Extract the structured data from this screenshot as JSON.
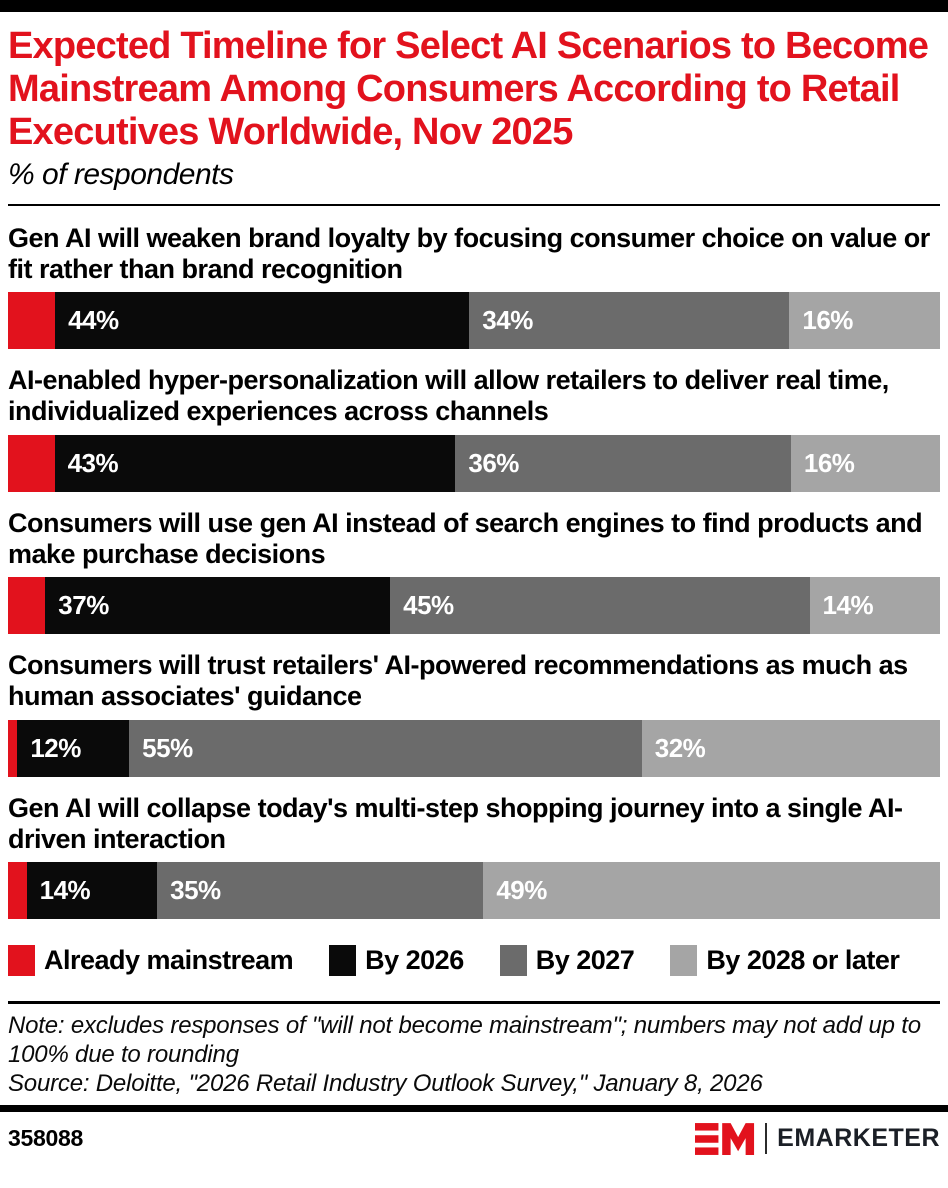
{
  "header": {
    "title": "Expected Timeline for Select AI Scenarios to Become Mainstream Among Consumers According to Retail Executives Worldwide, Nov 2025",
    "subtitle": "% of respondents"
  },
  "chart_data": {
    "type": "bar",
    "variant": "horizontal-stacked",
    "unit": "% of respondents",
    "xlim": [
      0,
      100
    ],
    "grid": false,
    "legend_position": "bottom",
    "series_colors": [
      "#e2121d",
      "#0a0a0a",
      "#6b6b6b",
      "#a5a5a5"
    ],
    "legend": [
      {
        "label": "Already mainstream",
        "color": "#e2121d"
      },
      {
        "label": "By 2026",
        "color": "#0a0a0a"
      },
      {
        "label": "By 2027",
        "color": "#6b6b6b"
      },
      {
        "label": "By 2028 or later",
        "color": "#a5a5a5"
      }
    ],
    "rows": [
      {
        "label": "Gen AI will weaken brand loyalty by focusing consumer choice on value or fit rather than brand recognition",
        "values": [
          5,
          44,
          34,
          16
        ],
        "value_labels": [
          "",
          "44%",
          "34%",
          "16%"
        ]
      },
      {
        "label": "AI-enabled hyper-personalization will allow retailers to deliver real time, individualized experiences across channels",
        "values": [
          5,
          43,
          36,
          16
        ],
        "value_labels": [
          "",
          "43%",
          "36%",
          "16%"
        ]
      },
      {
        "label": "Consumers will use gen AI instead of search engines to find products and make purchase decisions",
        "values": [
          4,
          37,
          45,
          14
        ],
        "value_labels": [
          "",
          "37%",
          "45%",
          "14%"
        ]
      },
      {
        "label": "Consumers will trust retailers' AI-powered recommendations as much as human associates' guidance",
        "values": [
          1,
          12,
          55,
          32
        ],
        "value_labels": [
          "",
          "12%",
          "55%",
          "32%"
        ]
      },
      {
        "label": "Gen AI will collapse today's multi-step shopping journey into a single AI-driven interaction",
        "values": [
          2,
          14,
          35,
          49
        ],
        "value_labels": [
          "",
          "14%",
          "35%",
          "49%"
        ]
      }
    ]
  },
  "footnotes": {
    "note": "Note: excludes responses of \"will not become mainstream\"; numbers may not add up to 100% due to rounding",
    "source": "Source: Deloitte, \"2026 Retail Industry Outlook Survey,\" January 8, 2026"
  },
  "footer": {
    "chart_id": "358088",
    "brand": "EMARKETER",
    "brand_red": "#e2121d"
  }
}
